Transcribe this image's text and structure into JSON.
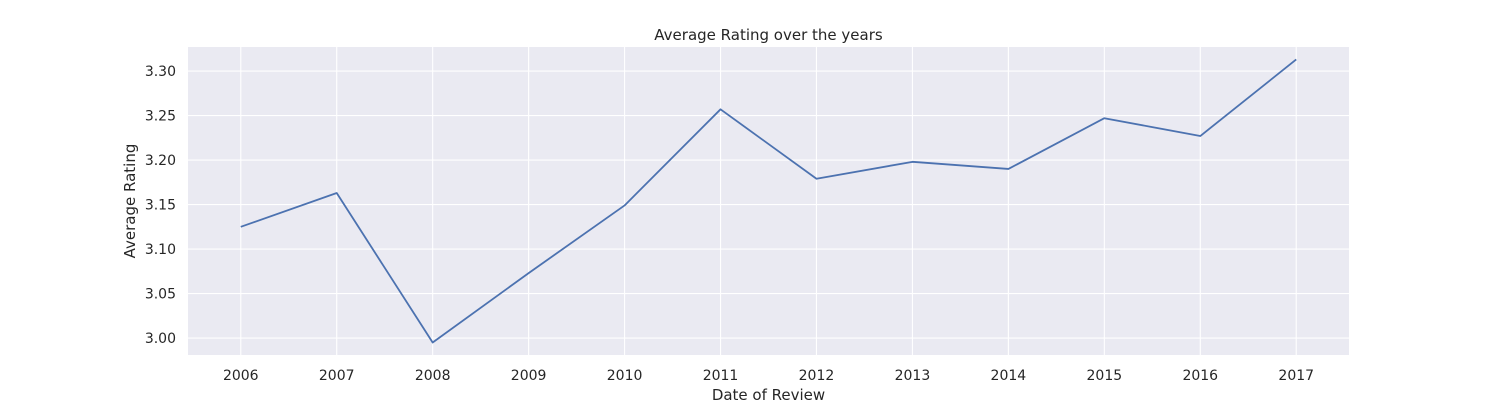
{
  "chart_data": {
    "type": "line",
    "title": "Average Rating over the years",
    "xlabel": "Date of Review",
    "ylabel": "Average Rating",
    "x": [
      2006,
      2007,
      2008,
      2009,
      2010,
      2011,
      2012,
      2013,
      2014,
      2015,
      2016,
      2017
    ],
    "series": [
      {
        "values": [
          3.125,
          3.163,
          2.995,
          3.073,
          3.149,
          3.257,
          3.179,
          3.198,
          3.19,
          3.247,
          3.227,
          3.313
        ]
      }
    ],
    "xlim": [
      2005.45,
      2017.55
    ],
    "ylim": [
      2.981,
      3.327
    ],
    "yticks": [
      "3.00",
      "3.05",
      "3.10",
      "3.15",
      "3.20",
      "3.25",
      "3.30"
    ],
    "xticks": [
      "2006",
      "2007",
      "2008",
      "2009",
      "2010",
      "2011",
      "2012",
      "2013",
      "2014",
      "2015",
      "2016",
      "2017"
    ],
    "grid": true,
    "colors": {
      "background": "#eaeaf2",
      "grid": "#ffffff",
      "line": "#4c72b0"
    }
  }
}
